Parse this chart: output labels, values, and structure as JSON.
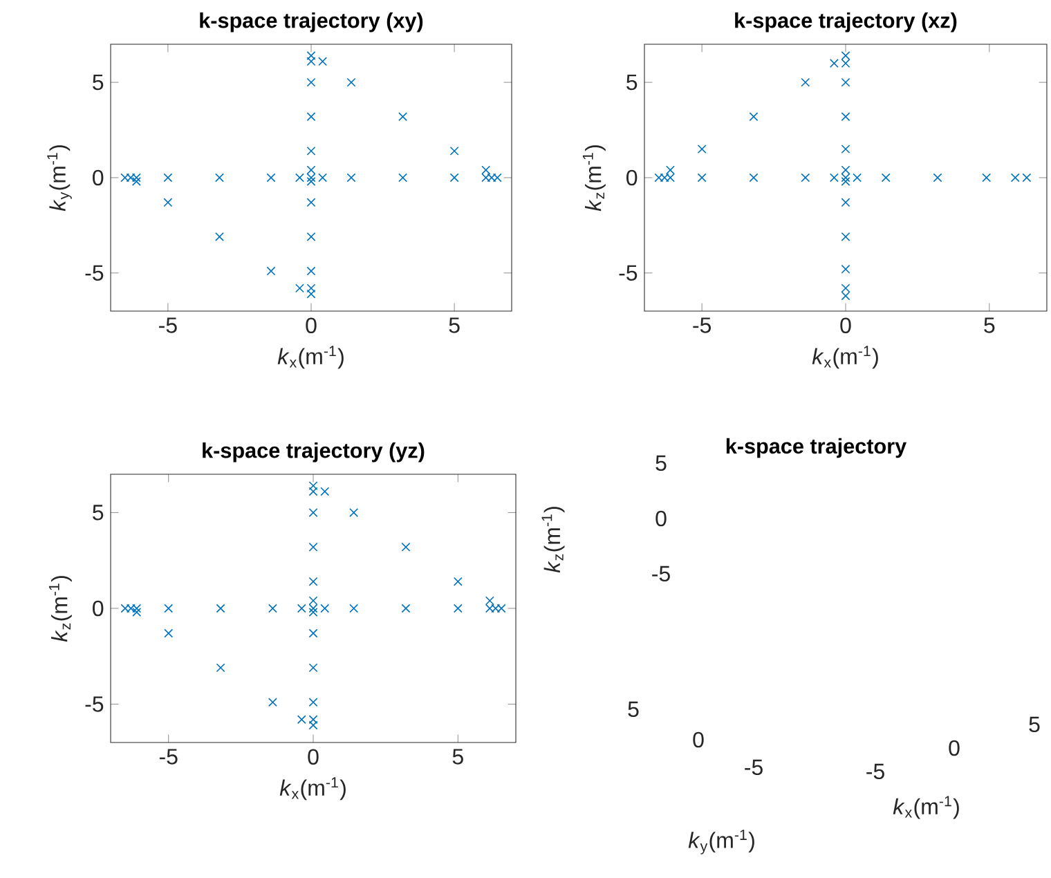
{
  "chart_data": [
    {
      "type": "scatter",
      "title": "k-space trajectory (xy)",
      "xlabel": "*k*$_{x}$(m$^{-1}$)",
      "ylabel": "*k*$_{y}$(m$^{-1}$)",
      "color": "#0072bd",
      "marker": "cross",
      "x": [
        -6.5,
        -6.3,
        -6.1,
        -6.1,
        -5,
        -5,
        -3.2,
        -3.2,
        -1.4,
        -1.4,
        -0.4,
        -0.4,
        0,
        0.4,
        1.4,
        1.4,
        3.2,
        3.2,
        5,
        5,
        6.1,
        6.1,
        6.3,
        6.5,
        0.4,
        0,
        0,
        0,
        0,
        0,
        0,
        0,
        0,
        0,
        0,
        0,
        0
      ],
      "values": [
        0,
        0,
        0,
        -0.2,
        0,
        -1.3,
        0,
        -3.1,
        0,
        -4.9,
        0,
        -5.8,
        0,
        0,
        0,
        5,
        0,
        3.2,
        0,
        1.4,
        0,
        0.4,
        0,
        0,
        6.1,
        6.4,
        6.1,
        5,
        3.2,
        1.4,
        0.4,
        -0.2,
        -1.3,
        -3.1,
        -4.9,
        -5.8,
        -6.1
      ],
      "xlim": [
        -7,
        7
      ],
      "ylim": [
        -7,
        7
      ],
      "xticks": [
        -5,
        0,
        5
      ],
      "yticks": [
        -5,
        0,
        5
      ]
    },
    {
      "type": "scatter",
      "title": "k-space trajectory (xz)",
      "xlabel": "*k*$_{x}$(m$^{-1}$)",
      "ylabel": "*k*$_{z}$(m$^{-1}$)",
      "color": "#0072bd",
      "marker": "cross",
      "x": [
        -6.5,
        -6.3,
        -6.1,
        -6.1,
        -5,
        -5,
        -3.2,
        -3.2,
        -1.4,
        -1.4,
        -0.4,
        -0.4,
        0,
        0.4,
        1.4,
        3.2,
        4.9,
        5.9,
        6.3,
        0,
        0,
        0,
        0,
        0,
        0,
        0,
        0,
        0,
        0,
        0,
        0
      ],
      "values": [
        0,
        0,
        0,
        0.4,
        0,
        1.5,
        0,
        3.2,
        0,
        5,
        0,
        6,
        0,
        0,
        0,
        0,
        0,
        0,
        0,
        6.4,
        6,
        5,
        3.2,
        1.5,
        0.4,
        -0.2,
        -1.3,
        -3.1,
        -4.8,
        -5.8,
        -6.2
      ],
      "xlim": [
        -7,
        7
      ],
      "ylim": [
        -7,
        7
      ],
      "xticks": [
        -5,
        0,
        5
      ],
      "yticks": [
        -5,
        0,
        5
      ]
    },
    {
      "type": "scatter",
      "title": "k-space trajectory (yz)",
      "xlabel": "*k*$_{x}$(m$^{-1}$)",
      "ylabel": "*k*$_{z}$(m$^{-1}$)",
      "color": "#0072bd",
      "marker": "cross",
      "x": [
        -6.5,
        -6.3,
        -6.1,
        -6.1,
        -5,
        -5,
        -3.2,
        -3.2,
        -1.4,
        -1.4,
        -0.4,
        -0.4,
        0,
        0.4,
        1.4,
        1.4,
        3.2,
        3.2,
        5,
        5,
        6.1,
        6.1,
        6.3,
        6.5,
        0.4,
        0,
        0,
        0,
        0,
        0,
        0,
        0,
        0,
        0,
        0,
        0,
        0
      ],
      "values": [
        0,
        0,
        0,
        -0.2,
        0,
        -1.3,
        0,
        -3.1,
        0,
        -4.9,
        0,
        -5.8,
        0,
        0,
        0,
        5,
        0,
        3.2,
        0,
        1.4,
        0,
        0.4,
        0,
        0,
        6.1,
        6.4,
        6.1,
        5,
        3.2,
        1.4,
        0.4,
        -0.2,
        -1.3,
        -3.1,
        -4.9,
        -5.8,
        -6.1
      ],
      "xlim": [
        -7,
        7
      ],
      "ylim": [
        -7,
        7
      ],
      "xticks": [
        -5,
        0,
        5
      ],
      "yticks": [
        -5,
        0,
        5
      ]
    },
    {
      "type": "other",
      "title": "k-space trajectory",
      "xlabel": "*k*$_{x}$(m$^{-1}$)",
      "ylabel": "*k*$_{y}$(m$^{-1}$)",
      "annotations": [
        "*k*$_{z}$(m$^{-1}$)",
        "5",
        "0",
        "-5",
        "5",
        "0",
        "-5",
        "-5",
        "0",
        "5"
      ]
    }
  ]
}
